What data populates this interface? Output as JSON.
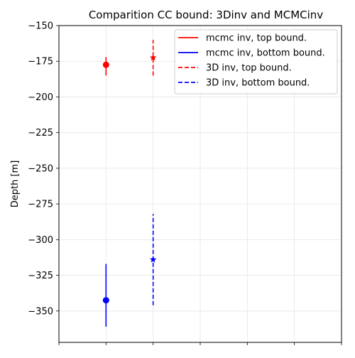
{
  "chart_data": {
    "type": "scatter",
    "title": "Comparition CC bound: 3Dinv and MCMCinv",
    "xlabel": "",
    "ylabel": "Depth [m]",
    "ylim": [
      -372,
      -150
    ],
    "xlim": [
      -1,
      5
    ],
    "grid": true,
    "legend_position": "top-right",
    "yticks": [
      -150,
      -175,
      -200,
      -225,
      -250,
      -275,
      -300,
      -325,
      -350
    ],
    "ytick_labels": [
      "−150",
      "−175",
      "−200",
      "−225",
      "−250",
      "−275",
      "−300",
      "−325",
      "−350"
    ],
    "xticks": [
      -1,
      0,
      1,
      2,
      3,
      4,
      5
    ],
    "series": [
      {
        "name": "mcmc inv, top bound.",
        "color": "#ff0000",
        "line_style": "solid",
        "marker": "circle",
        "x": 0,
        "y": -177.5,
        "error_range": [
          -185,
          -172
        ]
      },
      {
        "name": "mcmc inv, bottom bound.",
        "color": "#0000ff",
        "line_style": "solid",
        "marker": "circle",
        "x": 0,
        "y": -342.5,
        "error_range": [
          -361,
          -317
        ]
      },
      {
        "name": "3D inv, top bound.",
        "color": "#ff0000",
        "line_style": "dashed",
        "marker": "star",
        "x": 1,
        "y": -172.5,
        "error_range": [
          -185,
          -160
        ]
      },
      {
        "name": "3D inv, bottom bound.",
        "color": "#0000ff",
        "line_style": "dashed",
        "marker": "star",
        "x": 1,
        "y": -314,
        "error_range": [
          -346,
          -282
        ]
      }
    ]
  }
}
